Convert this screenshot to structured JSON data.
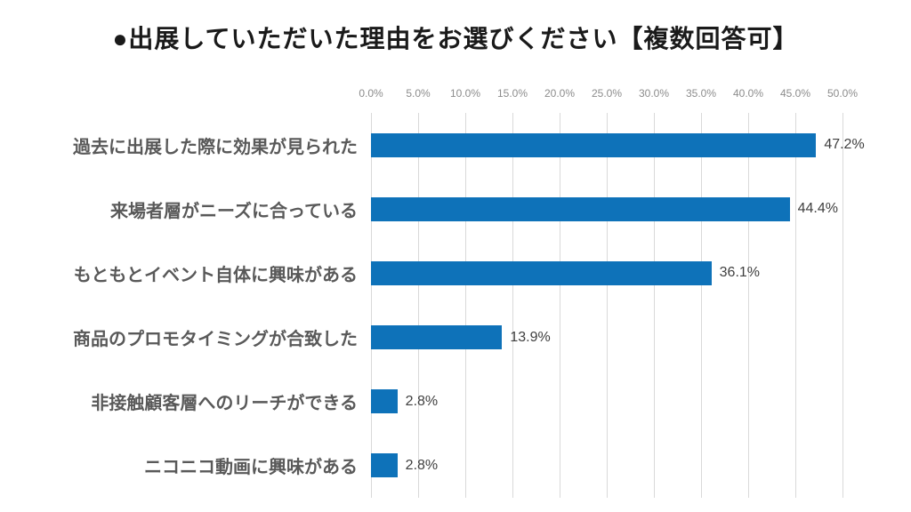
{
  "chart_data": {
    "type": "bar",
    "orientation": "horizontal",
    "title": "●出展していただいた理由をお選びください【複数回答可】",
    "categories": [
      "過去に出展した際に効果が見られた",
      "来場者層がニーズに合っている",
      "もともとイベント自体に興味がある",
      "商品のプロモタイミングが合致した",
      "非接触顧客層へのリーチができる",
      "ニコニコ動画に興味がある"
    ],
    "values": [
      47.2,
      44.4,
      36.1,
      13.9,
      2.8,
      2.8
    ],
    "value_labels": [
      "47.2%",
      "44.4%",
      "36.1%",
      "13.9%",
      "2.8%",
      "2.8%"
    ],
    "xticks": [
      "0.0%",
      "5.0%",
      "10.0%",
      "15.0%",
      "20.0%",
      "25.0%",
      "30.0%",
      "35.0%",
      "40.0%",
      "45.0%",
      "50.0%"
    ],
    "xtick_values": [
      0,
      5,
      10,
      15,
      20,
      25,
      30,
      35,
      40,
      45,
      50
    ],
    "xlim": [
      0,
      50
    ],
    "grid": true,
    "legend": false,
    "colors": {
      "bar": "#0e72b9",
      "gridline": "#d9d9d9",
      "category_label": "#595959",
      "value_label": "#3f3f3f",
      "tick_label": "#8c8c8c",
      "title": "#1a1a1a",
      "background": "#ffffff"
    }
  }
}
